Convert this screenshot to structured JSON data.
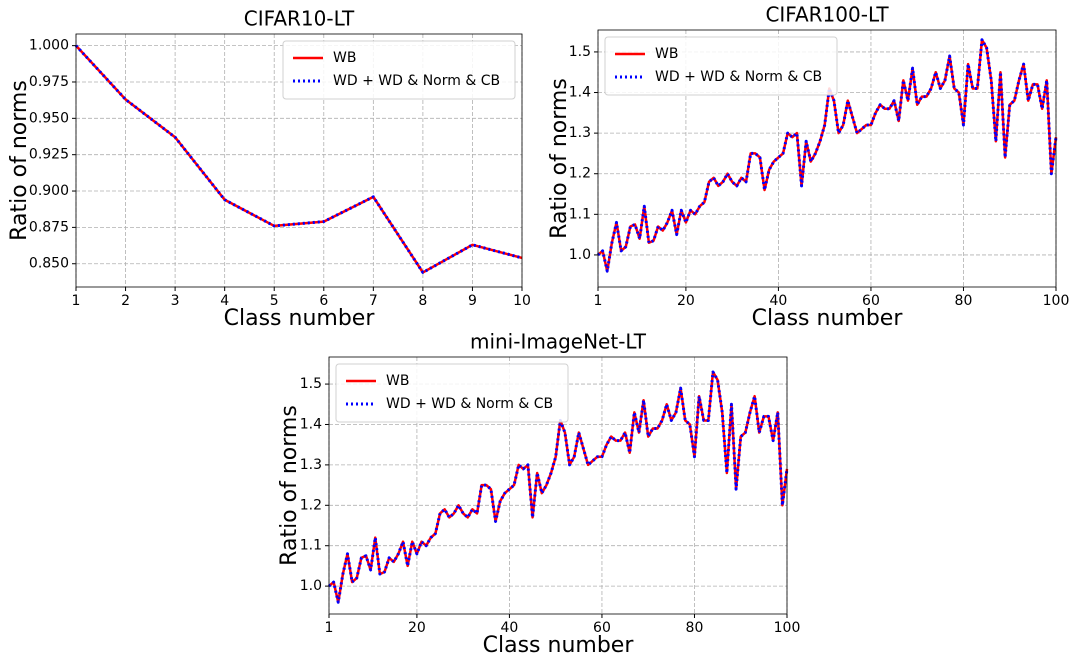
{
  "chart_data": [
    {
      "type": "line",
      "title": "CIFAR10-LT",
      "xlabel": "Class number",
      "ylabel": "Ratio of norms",
      "x": [
        1,
        2,
        3,
        4,
        5,
        6,
        7,
        8,
        9,
        10
      ],
      "series": [
        {
          "name": "WB",
          "color": "#ff0000",
          "linestyle": "solid",
          "values": [
            1.0,
            0.963,
            0.937,
            0.894,
            0.876,
            0.879,
            0.896,
            0.844,
            0.863,
            0.854
          ]
        },
        {
          "name": "WD + WD & Norm & CB",
          "color": "#0000ff",
          "linestyle": "dotted",
          "values": [
            1.0,
            0.963,
            0.937,
            0.894,
            0.876,
            0.879,
            0.896,
            0.844,
            0.863,
            0.854
          ]
        }
      ],
      "xlim": [
        1,
        10
      ],
      "xticks": [
        1,
        2,
        3,
        4,
        5,
        6,
        7,
        8,
        9,
        10
      ],
      "ylim": [
        0.834,
        1.008
      ],
      "yticks": [
        {
          "value": 0.85,
          "label": "0.850"
        },
        0.875,
        {
          "value": 0.9,
          "label": "0.900"
        },
        0.925,
        {
          "value": 0.95,
          "label": "0.950"
        },
        0.975,
        {
          "value": 1,
          "label": "1.000"
        }
      ],
      "grid": true,
      "legend": "upper right"
    },
    {
      "type": "line",
      "title": "CIFAR100-LT",
      "xlabel": "Class number",
      "ylabel": "Ratio of norms",
      "x": [
        1,
        2,
        3,
        4,
        5,
        6,
        7,
        8,
        9,
        10,
        11,
        12,
        13,
        14,
        15,
        16,
        17,
        18,
        19,
        20,
        21,
        22,
        23,
        24,
        25,
        26,
        27,
        28,
        29,
        30,
        31,
        32,
        33,
        34,
        35,
        36,
        37,
        38,
        39,
        40,
        41,
        42,
        43,
        44,
        45,
        46,
        47,
        48,
        49,
        50,
        51,
        52,
        53,
        54,
        55,
        56,
        57,
        58,
        59,
        60,
        61,
        62,
        63,
        64,
        65,
        66,
        67,
        68,
        69,
        70,
        71,
        72,
        73,
        74,
        75,
        76,
        77,
        78,
        79,
        80,
        81,
        82,
        83,
        84,
        85,
        86,
        87,
        88,
        89,
        90,
        91,
        92,
        93,
        94,
        95,
        96,
        97,
        98,
        99,
        100
      ],
      "series": [
        {
          "name": "WB",
          "color": "#ff0000",
          "linestyle": "solid",
          "values": [
            1.0,
            1.01,
            0.96,
            1.03,
            1.08,
            1.01,
            1.02,
            1.07,
            1.075,
            1.04,
            1.12,
            1.03,
            1.035,
            1.07,
            1.06,
            1.08,
            1.11,
            1.05,
            1.11,
            1.08,
            1.11,
            1.1,
            1.12,
            1.13,
            1.18,
            1.19,
            1.17,
            1.18,
            1.2,
            1.18,
            1.17,
            1.19,
            1.18,
            1.25,
            1.25,
            1.24,
            1.16,
            1.21,
            1.23,
            1.24,
            1.25,
            1.3,
            1.29,
            1.3,
            1.17,
            1.28,
            1.23,
            1.25,
            1.28,
            1.32,
            1.41,
            1.38,
            1.3,
            1.32,
            1.38,
            1.34,
            1.3,
            1.31,
            1.32,
            1.32,
            1.35,
            1.37,
            1.36,
            1.36,
            1.38,
            1.33,
            1.43,
            1.38,
            1.46,
            1.37,
            1.39,
            1.39,
            1.41,
            1.45,
            1.41,
            1.43,
            1.49,
            1.41,
            1.4,
            1.32,
            1.47,
            1.41,
            1.41,
            1.53,
            1.51,
            1.43,
            1.28,
            1.45,
            1.24,
            1.37,
            1.38,
            1.43,
            1.47,
            1.38,
            1.42,
            1.42,
            1.36,
            1.43,
            1.2,
            1.29
          ]
        },
        {
          "name": "WD + WD & Norm & CB",
          "color": "#0000ff",
          "linestyle": "dotted",
          "values": [
            1.0,
            1.01,
            0.96,
            1.03,
            1.08,
            1.01,
            1.02,
            1.07,
            1.075,
            1.04,
            1.12,
            1.03,
            1.035,
            1.07,
            1.06,
            1.08,
            1.11,
            1.05,
            1.11,
            1.08,
            1.11,
            1.1,
            1.12,
            1.13,
            1.18,
            1.19,
            1.17,
            1.18,
            1.2,
            1.18,
            1.17,
            1.19,
            1.18,
            1.25,
            1.25,
            1.24,
            1.16,
            1.21,
            1.23,
            1.24,
            1.25,
            1.3,
            1.29,
            1.3,
            1.17,
            1.28,
            1.23,
            1.25,
            1.28,
            1.32,
            1.41,
            1.38,
            1.3,
            1.32,
            1.38,
            1.34,
            1.3,
            1.31,
            1.32,
            1.32,
            1.35,
            1.37,
            1.36,
            1.36,
            1.38,
            1.33,
            1.43,
            1.38,
            1.46,
            1.37,
            1.39,
            1.39,
            1.41,
            1.45,
            1.41,
            1.43,
            1.49,
            1.41,
            1.4,
            1.32,
            1.47,
            1.41,
            1.41,
            1.53,
            1.51,
            1.43,
            1.28,
            1.45,
            1.24,
            1.37,
            1.38,
            1.43,
            1.47,
            1.38,
            1.42,
            1.42,
            1.36,
            1.43,
            1.2,
            1.29
          ]
        }
      ],
      "xlim": [
        1,
        100
      ],
      "xticks": [
        1,
        20,
        40,
        60,
        80,
        100
      ],
      "ylim": [
        0.921,
        1.554
      ],
      "yticks": [
        {
          "value": 1,
          "label": "1.0"
        },
        1.1,
        1.2,
        1.3,
        1.4,
        1.5
      ],
      "grid": true,
      "legend": "upper left"
    },
    {
      "type": "line",
      "title": "mini-ImageNet-LT",
      "xlabel": "Class number",
      "ylabel": "Ratio of norms",
      "x": [
        1,
        2,
        3,
        4,
        5,
        6,
        7,
        8,
        9,
        10,
        11,
        12,
        13,
        14,
        15,
        16,
        17,
        18,
        19,
        20,
        21,
        22,
        23,
        24,
        25,
        26,
        27,
        28,
        29,
        30,
        31,
        32,
        33,
        34,
        35,
        36,
        37,
        38,
        39,
        40,
        41,
        42,
        43,
        44,
        45,
        46,
        47,
        48,
        49,
        50,
        51,
        52,
        53,
        54,
        55,
        56,
        57,
        58,
        59,
        60,
        61,
        62,
        63,
        64,
        65,
        66,
        67,
        68,
        69,
        70,
        71,
        72,
        73,
        74,
        75,
        76,
        77,
        78,
        79,
        80,
        81,
        82,
        83,
        84,
        85,
        86,
        87,
        88,
        89,
        90,
        91,
        92,
        93,
        94,
        95,
        96,
        97,
        98,
        99,
        100
      ],
      "series": [
        {
          "name": "WB",
          "color": "#ff0000",
          "linestyle": "solid",
          "values": [
            1.0,
            1.01,
            0.96,
            1.03,
            1.08,
            1.01,
            1.02,
            1.07,
            1.075,
            1.04,
            1.12,
            1.03,
            1.035,
            1.07,
            1.06,
            1.08,
            1.11,
            1.05,
            1.11,
            1.08,
            1.11,
            1.1,
            1.12,
            1.13,
            1.18,
            1.19,
            1.17,
            1.18,
            1.2,
            1.18,
            1.17,
            1.19,
            1.18,
            1.25,
            1.25,
            1.24,
            1.16,
            1.21,
            1.23,
            1.24,
            1.25,
            1.3,
            1.29,
            1.3,
            1.17,
            1.28,
            1.23,
            1.25,
            1.28,
            1.32,
            1.41,
            1.38,
            1.3,
            1.32,
            1.38,
            1.34,
            1.3,
            1.31,
            1.32,
            1.32,
            1.35,
            1.37,
            1.36,
            1.36,
            1.38,
            1.33,
            1.43,
            1.38,
            1.46,
            1.37,
            1.39,
            1.39,
            1.41,
            1.45,
            1.41,
            1.43,
            1.49,
            1.41,
            1.4,
            1.32,
            1.47,
            1.41,
            1.41,
            1.53,
            1.51,
            1.43,
            1.28,
            1.45,
            1.24,
            1.37,
            1.38,
            1.43,
            1.47,
            1.38,
            1.42,
            1.42,
            1.36,
            1.43,
            1.2,
            1.29
          ]
        },
        {
          "name": "WD + WD & Norm & CB",
          "color": "#0000ff",
          "linestyle": "dotted",
          "values": [
            1.0,
            1.01,
            0.96,
            1.03,
            1.08,
            1.01,
            1.02,
            1.07,
            1.075,
            1.04,
            1.12,
            1.03,
            1.035,
            1.07,
            1.06,
            1.08,
            1.11,
            1.05,
            1.11,
            1.08,
            1.11,
            1.1,
            1.12,
            1.13,
            1.18,
            1.19,
            1.17,
            1.18,
            1.2,
            1.18,
            1.17,
            1.19,
            1.18,
            1.25,
            1.25,
            1.24,
            1.16,
            1.21,
            1.23,
            1.24,
            1.25,
            1.3,
            1.29,
            1.3,
            1.17,
            1.28,
            1.23,
            1.25,
            1.28,
            1.32,
            1.41,
            1.38,
            1.3,
            1.32,
            1.38,
            1.34,
            1.3,
            1.31,
            1.32,
            1.32,
            1.35,
            1.37,
            1.36,
            1.36,
            1.38,
            1.33,
            1.43,
            1.38,
            1.46,
            1.37,
            1.39,
            1.39,
            1.41,
            1.45,
            1.41,
            1.43,
            1.49,
            1.41,
            1.4,
            1.32,
            1.47,
            1.41,
            1.41,
            1.53,
            1.51,
            1.43,
            1.28,
            1.45,
            1.24,
            1.37,
            1.38,
            1.43,
            1.47,
            1.38,
            1.42,
            1.42,
            1.36,
            1.43,
            1.2,
            1.29
          ]
        }
      ],
      "xlim": [
        1,
        100
      ],
      "xticks": [
        1,
        20,
        40,
        60,
        80,
        100
      ],
      "ylim": [
        0.931,
        1.567
      ],
      "yticks": [
        {
          "value": 1,
          "label": "1.0"
        },
        1.1,
        1.2,
        1.3,
        1.4,
        1.5
      ],
      "grid": true,
      "legend": "upper left"
    }
  ]
}
